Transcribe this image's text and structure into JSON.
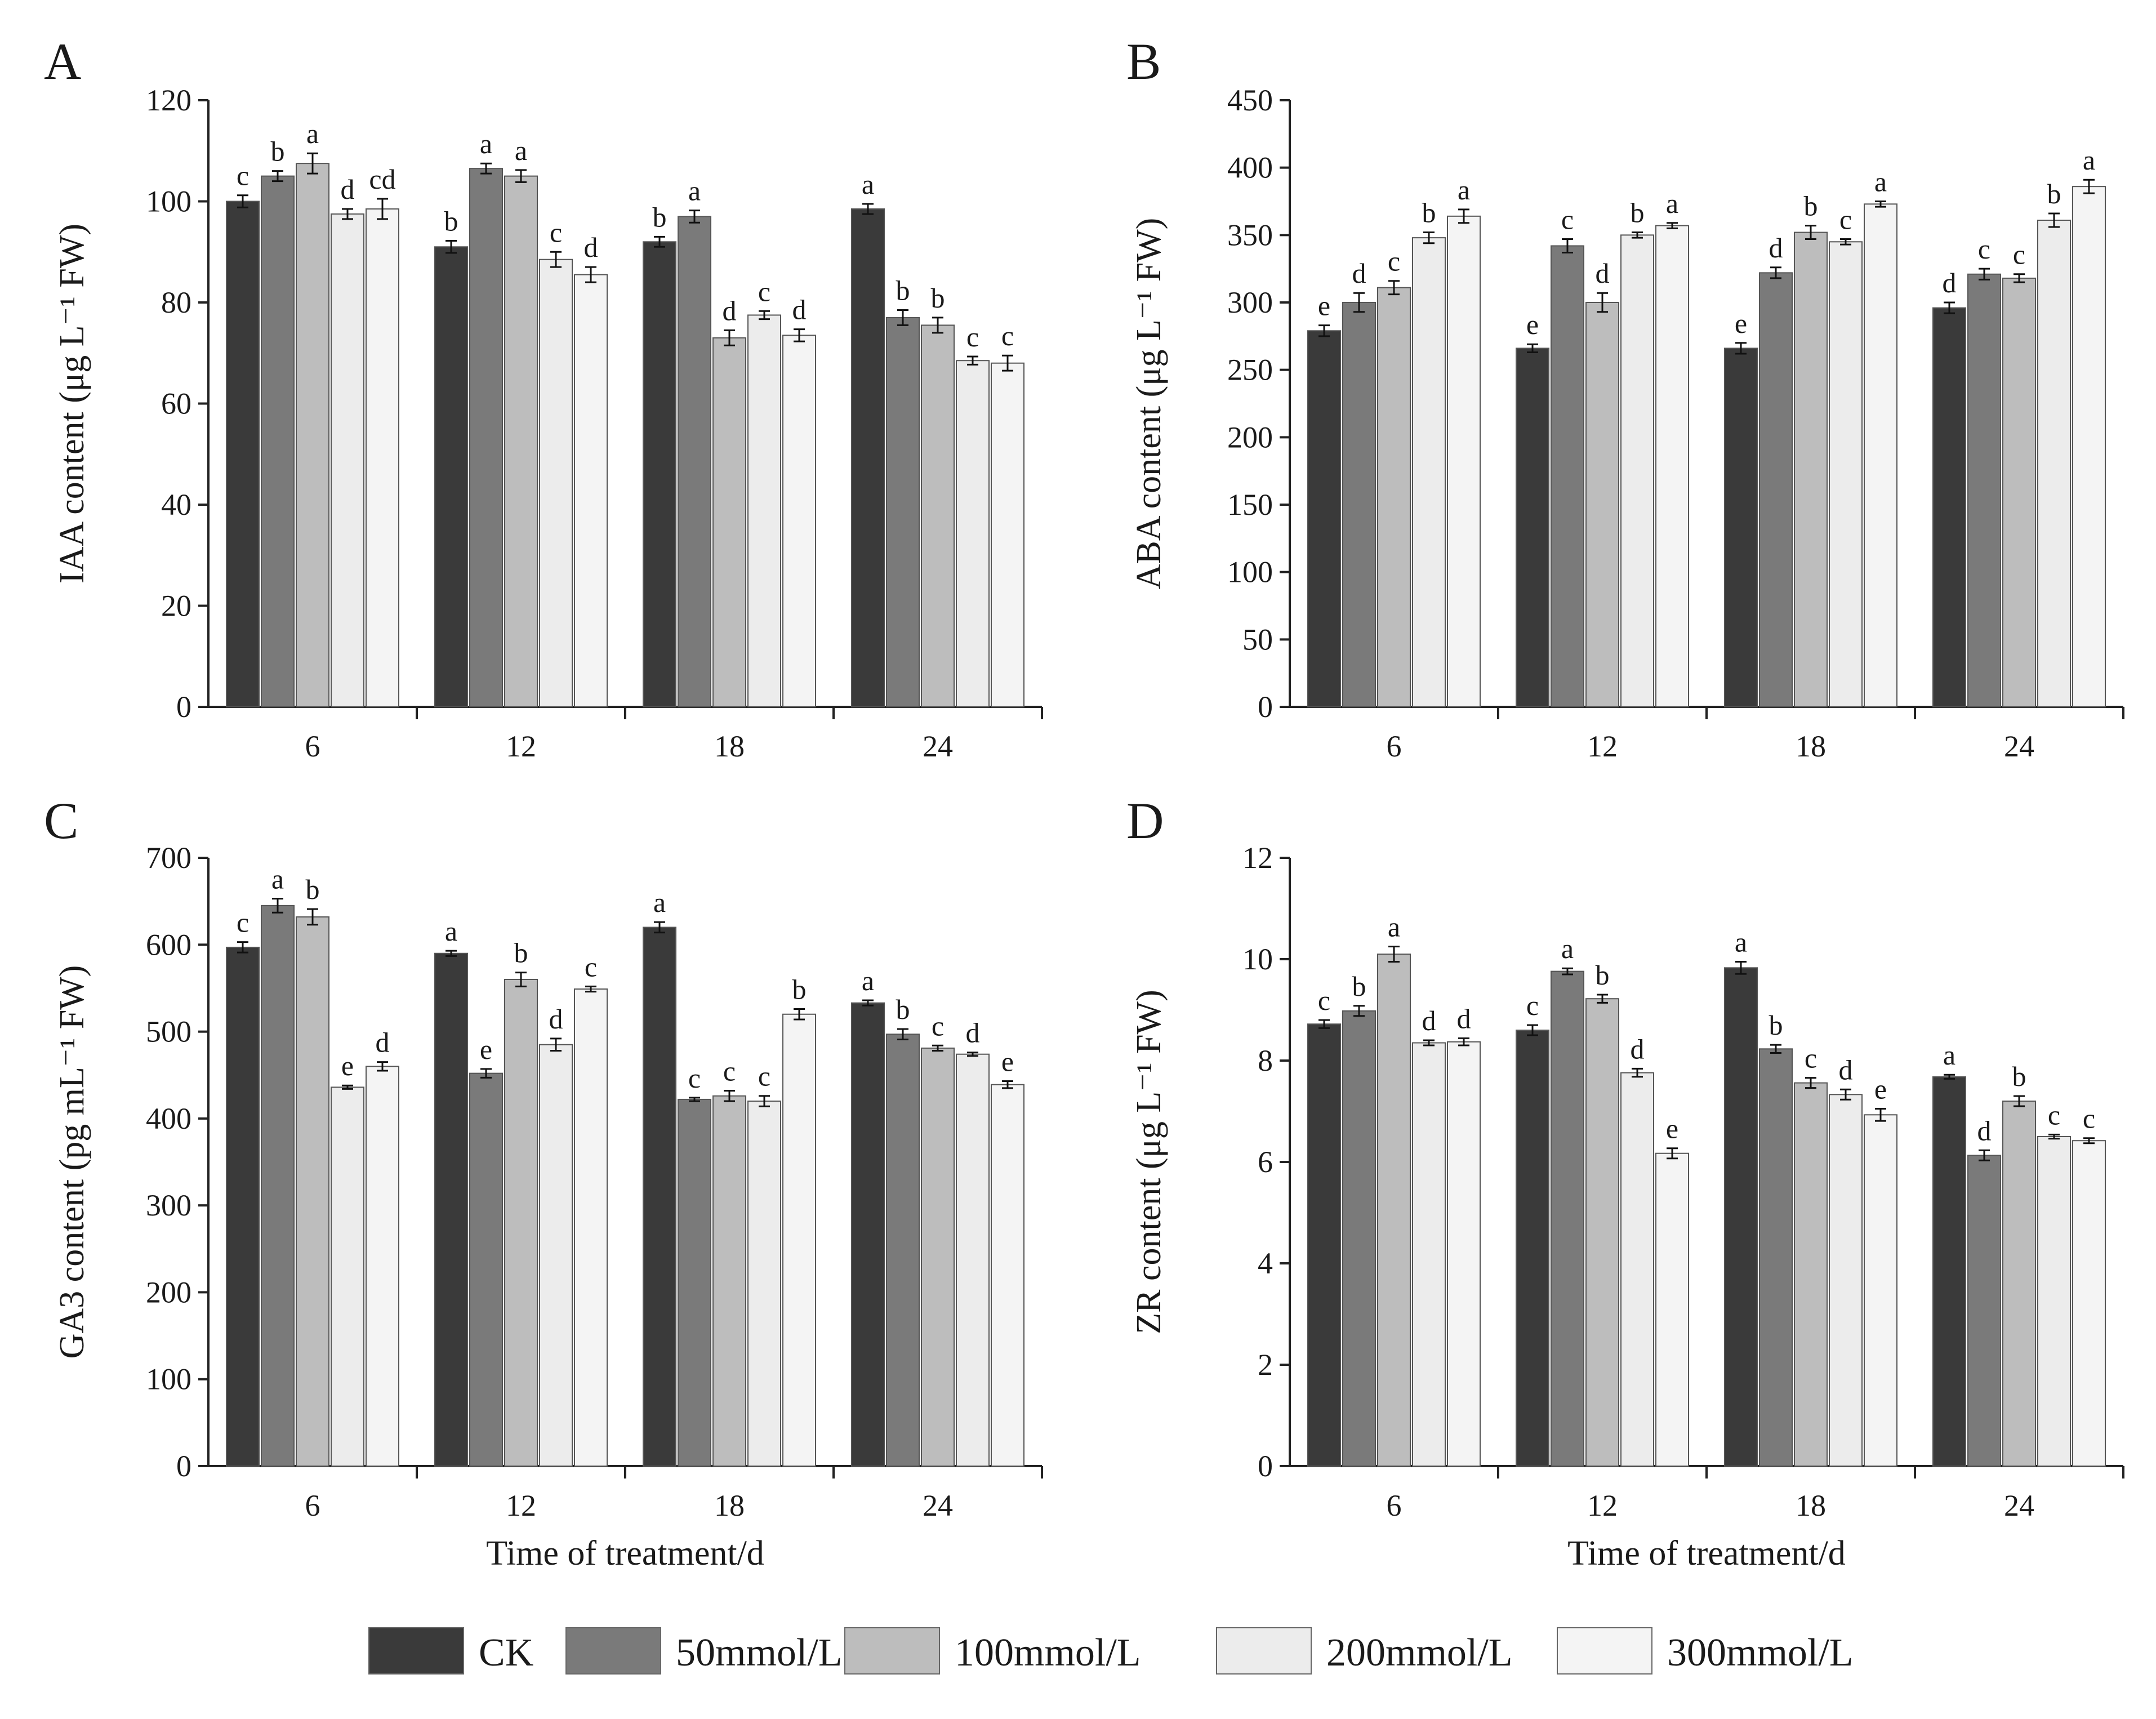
{
  "legend": {
    "items": [
      {
        "label": "CK",
        "color": "#3a3a3a"
      },
      {
        "label": "50mmol/L",
        "color": "#7a7a7a"
      },
      {
        "label": "100mmol/L",
        "color": "#bdbdbd"
      },
      {
        "label": "200mmol/L",
        "color": "#ececec"
      },
      {
        "label": "300mmol/L",
        "color": "#f4f4f4"
      }
    ]
  },
  "chart_data": [
    {
      "type": "bar",
      "panel": "A",
      "categories": [
        "6",
        "12",
        "18",
        "24"
      ],
      "ylabel": "IAA content (μg L⁻¹ FW)",
      "xlabel": "",
      "ylim": [
        0,
        120
      ],
      "yticks": [
        0,
        20,
        40,
        60,
        80,
        100,
        120
      ],
      "series": [
        {
          "name": "CK",
          "values": [
            100,
            91,
            92,
            98.5
          ],
          "errors": [
            1.2,
            1.2,
            1.0,
            1.0
          ],
          "letters": [
            "c",
            "b",
            "b",
            "a"
          ]
        },
        {
          "name": "50mmol/L",
          "values": [
            105,
            106.5,
            97,
            77
          ],
          "errors": [
            1.0,
            1.0,
            1.2,
            1.5
          ],
          "letters": [
            "b",
            "a",
            "a",
            "b"
          ]
        },
        {
          "name": "100mmol/L",
          "values": [
            107.5,
            105,
            73,
            75.5
          ],
          "errors": [
            2.0,
            1.2,
            1.5,
            1.5
          ],
          "letters": [
            "a",
            "a",
            "d",
            "b"
          ]
        },
        {
          "name": "200mmol/L",
          "values": [
            97.5,
            88.5,
            77.5,
            68.5
          ],
          "errors": [
            1.0,
            1.5,
            0.8,
            0.8
          ],
          "letters": [
            "d",
            "c",
            "c",
            "c"
          ]
        },
        {
          "name": "300mmol/L",
          "values": [
            98.5,
            85.5,
            73.5,
            68
          ],
          "errors": [
            2.0,
            1.5,
            1.2,
            1.5
          ],
          "letters": [
            "cd",
            "d",
            "d",
            "c"
          ]
        }
      ]
    },
    {
      "type": "bar",
      "panel": "B",
      "categories": [
        "6",
        "12",
        "18",
        "24"
      ],
      "ylabel": "ABA content (μg L⁻¹ FW)",
      "xlabel": "",
      "ylim": [
        0,
        450
      ],
      "yticks": [
        0,
        50,
        100,
        150,
        200,
        250,
        300,
        350,
        400,
        450
      ],
      "series": [
        {
          "name": "CK",
          "values": [
            279,
            266,
            266,
            296
          ],
          "errors": [
            4,
            3,
            4,
            4
          ],
          "letters": [
            "e",
            "e",
            "e",
            "d"
          ]
        },
        {
          "name": "50mmol/L",
          "values": [
            300,
            342,
            322,
            321
          ],
          "errors": [
            7,
            5,
            4,
            4
          ],
          "letters": [
            "d",
            "c",
            "d",
            "c"
          ]
        },
        {
          "name": "100mmol/L",
          "values": [
            311,
            300,
            352,
            318
          ],
          "errors": [
            5,
            7,
            5,
            3
          ],
          "letters": [
            "c",
            "d",
            "b",
            "c"
          ]
        },
        {
          "name": "200mmol/L",
          "values": [
            348,
            350,
            345,
            361
          ],
          "errors": [
            4,
            2,
            2,
            5
          ],
          "letters": [
            "b",
            "b",
            "c",
            "b"
          ]
        },
        {
          "name": "300mmol/L",
          "values": [
            364,
            357,
            373,
            386
          ],
          "errors": [
            5,
            2,
            2,
            5
          ],
          "letters": [
            "a",
            "a",
            "a",
            "a"
          ]
        }
      ]
    },
    {
      "type": "bar",
      "panel": "C",
      "categories": [
        "6",
        "12",
        "18",
        "24"
      ],
      "ylabel": "GA3 content (pg mL⁻¹ FW)",
      "xlabel": "Time of treatment/d",
      "ylim": [
        0,
        700
      ],
      "yticks": [
        0,
        100,
        200,
        300,
        400,
        500,
        600,
        700
      ],
      "series": [
        {
          "name": "CK",
          "values": [
            597,
            590,
            620,
            533
          ],
          "errors": [
            6,
            3,
            6,
            3
          ],
          "letters": [
            "c",
            "a",
            "a",
            "a"
          ]
        },
        {
          "name": "50mmol/L",
          "values": [
            645,
            452,
            422,
            497
          ],
          "errors": [
            8,
            5,
            2,
            6
          ],
          "letters": [
            "a",
            "e",
            "c",
            "b"
          ]
        },
        {
          "name": "100mmol/L",
          "values": [
            632,
            560,
            426,
            481
          ],
          "errors": [
            9,
            8,
            6,
            3
          ],
          "letters": [
            "b",
            "b",
            "c",
            "c"
          ]
        },
        {
          "name": "200mmol/L",
          "values": [
            436,
            485,
            420,
            474
          ],
          "errors": [
            2,
            7,
            6,
            2
          ],
          "letters": [
            "e",
            "d",
            "c",
            "d"
          ]
        },
        {
          "name": "300mmol/L",
          "values": [
            460,
            549,
            520,
            439
          ],
          "errors": [
            5,
            3,
            6,
            4
          ],
          "letters": [
            "d",
            "c",
            "b",
            "e"
          ]
        }
      ]
    },
    {
      "type": "bar",
      "panel": "D",
      "categories": [
        "6",
        "12",
        "18",
        "24"
      ],
      "ylabel": "ZR content (μg L⁻¹ FW)",
      "xlabel": "Time of treatment/d",
      "ylim": [
        0,
        12
      ],
      "yticks": [
        0,
        2,
        4,
        6,
        8,
        10,
        12
      ],
      "series": [
        {
          "name": "CK",
          "values": [
            8.72,
            8.6,
            9.83,
            7.68
          ],
          "errors": [
            0.08,
            0.1,
            0.12,
            0.04
          ],
          "letters": [
            "c",
            "c",
            "a",
            "a"
          ]
        },
        {
          "name": "50mmol/L",
          "values": [
            8.98,
            9.76,
            8.23,
            6.13
          ],
          "errors": [
            0.1,
            0.06,
            0.08,
            0.1
          ],
          "letters": [
            "b",
            "a",
            "b",
            "d"
          ]
        },
        {
          "name": "100mmol/L",
          "values": [
            10.1,
            9.22,
            7.56,
            7.2
          ],
          "errors": [
            0.15,
            0.08,
            0.1,
            0.1
          ],
          "letters": [
            "a",
            "b",
            "c",
            "b"
          ]
        },
        {
          "name": "200mmol/L",
          "values": [
            8.35,
            7.76,
            7.33,
            6.5
          ],
          "errors": [
            0.05,
            0.08,
            0.1,
            0.04
          ],
          "letters": [
            "d",
            "d",
            "d",
            "c"
          ]
        },
        {
          "name": "300mmol/L",
          "values": [
            8.37,
            6.17,
            6.93,
            6.42
          ],
          "errors": [
            0.07,
            0.1,
            0.12,
            0.05
          ],
          "letters": [
            "d",
            "e",
            "e",
            "c"
          ]
        }
      ]
    }
  ]
}
